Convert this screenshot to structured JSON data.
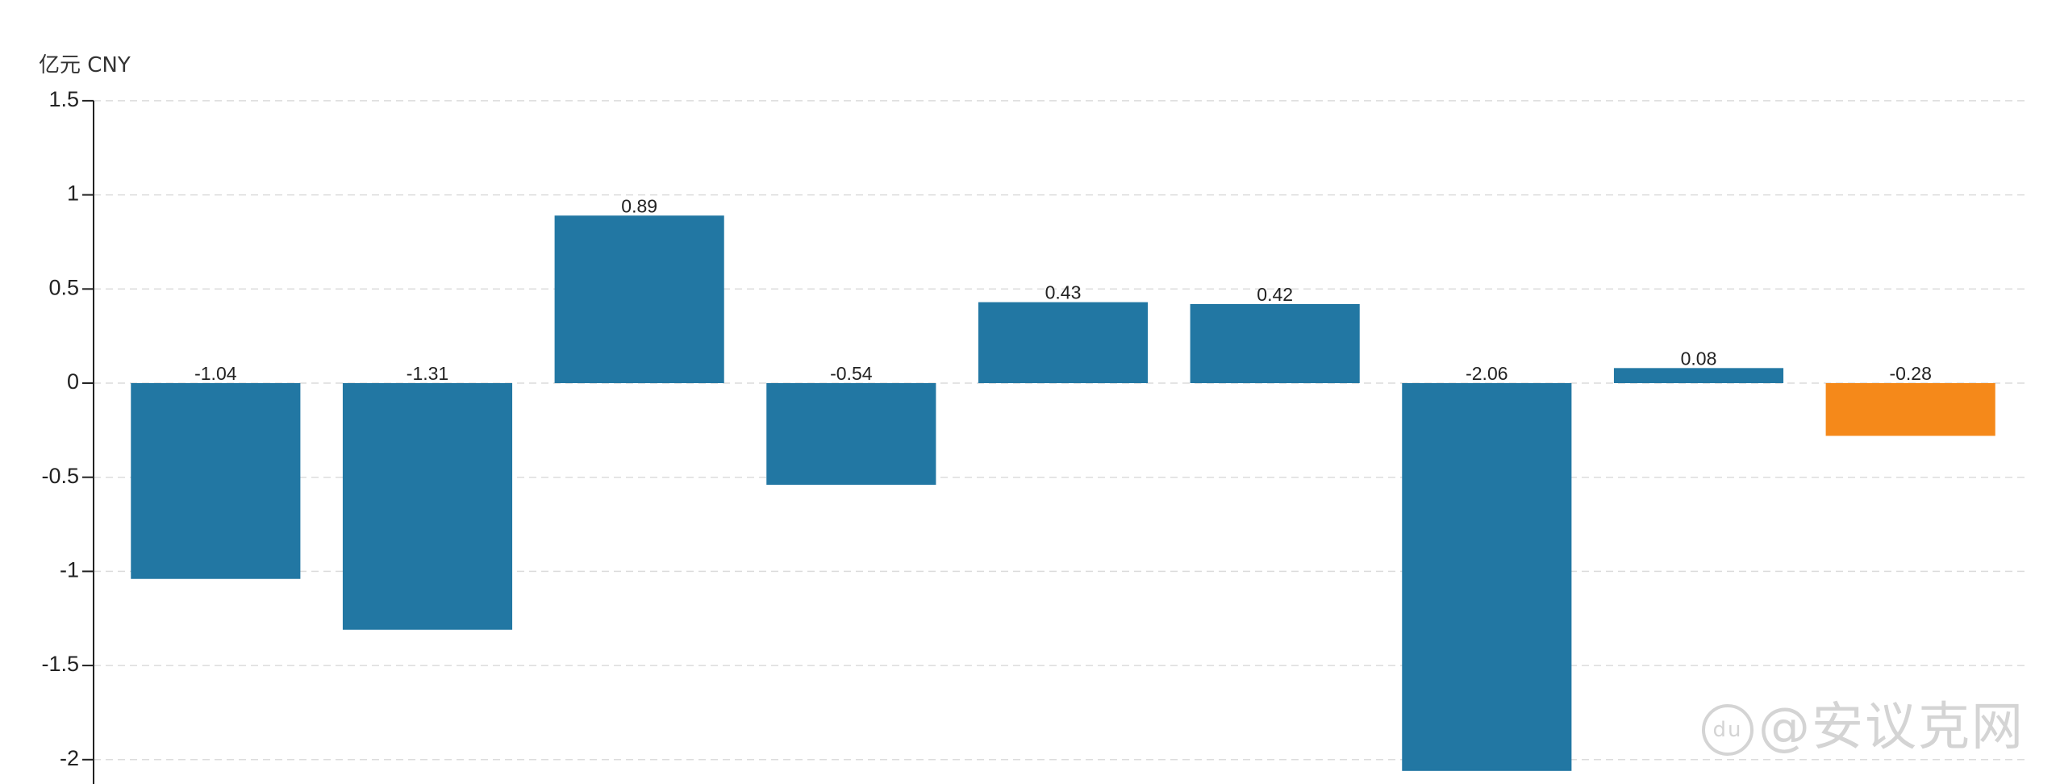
{
  "unit_label": "亿元  CNY",
  "watermark": {
    "badge": "du",
    "text": "@安议克网"
  },
  "colors": {
    "bar": "#2277a3",
    "highlight": "#f5891a",
    "grid": "#dcdcdc",
    "axis": "#222222"
  },
  "chart_data": {
    "type": "bar",
    "ylabel": "亿元  CNY",
    "ylim": [
      -2.2,
      1.5
    ],
    "yticks": [
      1.5,
      1,
      0.5,
      0,
      -0.5,
      -1,
      -1.5,
      -2
    ],
    "ytick_labels": [
      "1.5",
      "1",
      "0.5",
      "0",
      "-0.5",
      "-1",
      "-1.5",
      "-2"
    ],
    "grid": true,
    "values": [
      -1.04,
      -1.31,
      0.89,
      -0.54,
      0.43,
      0.42,
      -2.06,
      0.08,
      -0.28
    ],
    "value_labels": [
      "-1.04",
      "-1.31",
      "0.89",
      "-0.54",
      "0.43",
      "0.42",
      "-2.06",
      "0.08",
      "-0.28"
    ],
    "highlight_index": 8
  }
}
